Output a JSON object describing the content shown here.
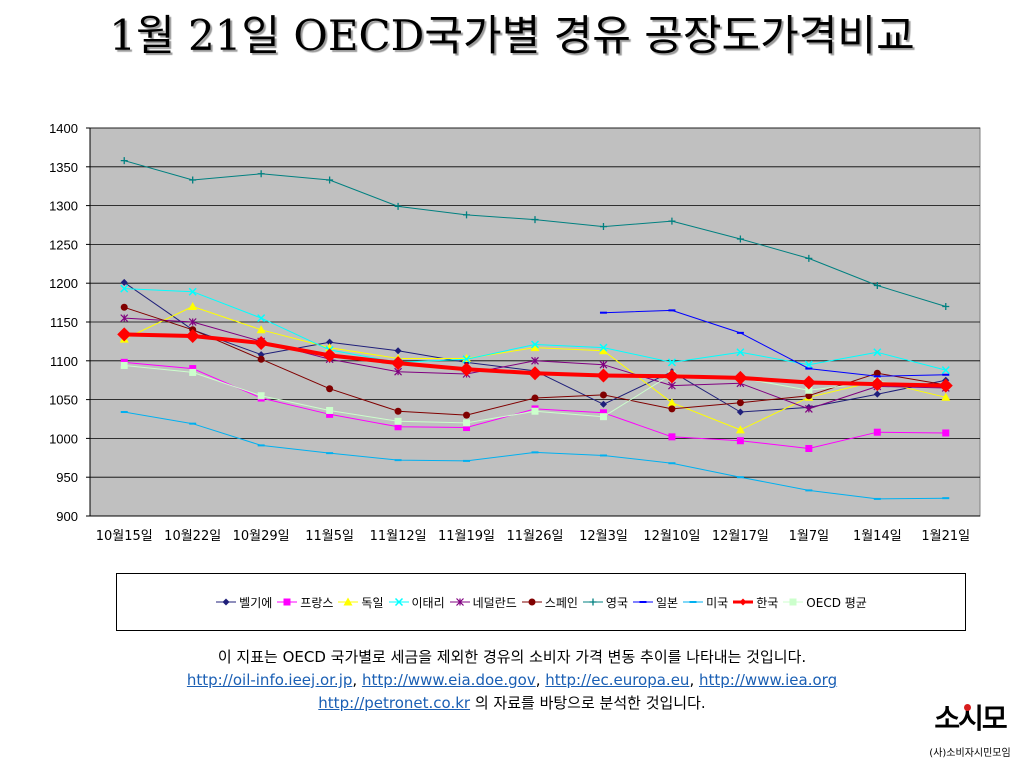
{
  "title": "1월 21일 OECD국가별 경유 공장도가격비교",
  "chart_data": {
    "type": "line",
    "title": "1월 21일 OECD국가별 경유 공장도가격비교",
    "categories": [
      "10월15일",
      "10월22일",
      "10월29일",
      "11월5일",
      "11월12일",
      "11월19일",
      "11월26일",
      "12월3일",
      "12월10일",
      "12월17일",
      "1월7일",
      "1월14일",
      "1월21일"
    ],
    "ylim": [
      900,
      1400
    ],
    "yticks": [
      900,
      950,
      1000,
      1050,
      1100,
      1150,
      1200,
      1250,
      1300,
      1350,
      1400
    ],
    "grid": true,
    "legend": "bottom",
    "series": [
      {
        "name": "벨기에",
        "color": "#1f1f7a",
        "marker": "diamond",
        "width": 1,
        "values": [
          1201,
          1140,
          1108,
          1124,
          1113,
          1098,
          1087,
          1044,
          1086,
          1034,
          1040,
          1057,
          1075
        ]
      },
      {
        "name": "프랑스",
        "color": "#ff00ff",
        "marker": "square",
        "width": 1,
        "values": [
          1098,
          1090,
          1052,
          1031,
          1015,
          1014,
          1038,
          1033,
          1002,
          997,
          987,
          1008,
          1007
        ]
      },
      {
        "name": "독일",
        "color": "#ffff00",
        "marker": "triangle",
        "width": 1,
        "values": [
          1128,
          1170,
          1140,
          1117,
          1103,
          1103,
          1117,
          1113,
          1046,
          1011,
          1053,
          1074,
          1053
        ]
      },
      {
        "name": "이태리",
        "color": "#00ffff",
        "marker": "x",
        "width": 1,
        "values": [
          1193,
          1189,
          1155,
          1114,
          1098,
          1102,
          1121,
          1117,
          1098,
          1111,
          1095,
          1111,
          1088
        ]
      },
      {
        "name": "네덜란드",
        "color": "#800080",
        "marker": "star",
        "width": 1,
        "values": [
          1155,
          1150,
          1125,
          1102,
          1086,
          1083,
          1100,
          1095,
          1068,
          1071,
          1038,
          1067,
          1065
        ]
      },
      {
        "name": "스페인",
        "color": "#800000",
        "marker": "circle",
        "width": 1,
        "values": [
          1169,
          1140,
          1102,
          1064,
          1035,
          1030,
          1052,
          1056,
          1038,
          1046,
          1055,
          1084,
          1069
        ]
      },
      {
        "name": "영국",
        "color": "#008080",
        "marker": "plus",
        "width": 1,
        "values": [
          1358,
          1333,
          1341,
          1333,
          1299,
          1288,
          1282,
          1273,
          1280,
          1257,
          1232,
          1197,
          1170
        ]
      },
      {
        "name": "일본",
        "color": "#0000ff",
        "marker": "dash",
        "width": 1,
        "values": [
          null,
          null,
          null,
          null,
          null,
          null,
          null,
          1162,
          1165,
          1136,
          1090,
          1080,
          1082
        ]
      },
      {
        "name": "미국",
        "color": "#00b0f0",
        "marker": "dash",
        "width": 1,
        "values": [
          1034,
          1019,
          991,
          981,
          972,
          971,
          982,
          978,
          968,
          950,
          933,
          922,
          923
        ]
      },
      {
        "name": "한국",
        "color": "#ff0000",
        "marker": "diamond-big",
        "width": 4,
        "values": [
          1134,
          1132,
          1123,
          1107,
          1097,
          1089,
          1084,
          1081,
          1080,
          1078,
          1072,
          1070,
          1068
        ]
      },
      {
        "name": "OECD 평균",
        "color": "#ccffcc",
        "marker": "square",
        "width": 1,
        "values": [
          1094,
          1085,
          1055,
          1036,
          1022,
          1020,
          1035,
          1028,
          1083,
          1078,
          1062,
          1073,
          1067
        ]
      }
    ]
  },
  "caption": {
    "line1": "이 지표는 OECD 국가별로 세금을 제외한 경유의 소비자 가격 변동 추이를 나타내는 것입니다.",
    "links": [
      "http://oil-info.ieej.or.jp",
      "http://www.eia.doe.gov",
      "http://ec.europa.eu",
      "http://www.iea.org",
      "http://petronet.co.kr"
    ],
    "separator": ", ",
    "suffix": " 의 자료를 바탕으로 분석한 것입니다."
  },
  "logo": {
    "main": "소시모",
    "sub": "(사)소비자시민모임"
  }
}
